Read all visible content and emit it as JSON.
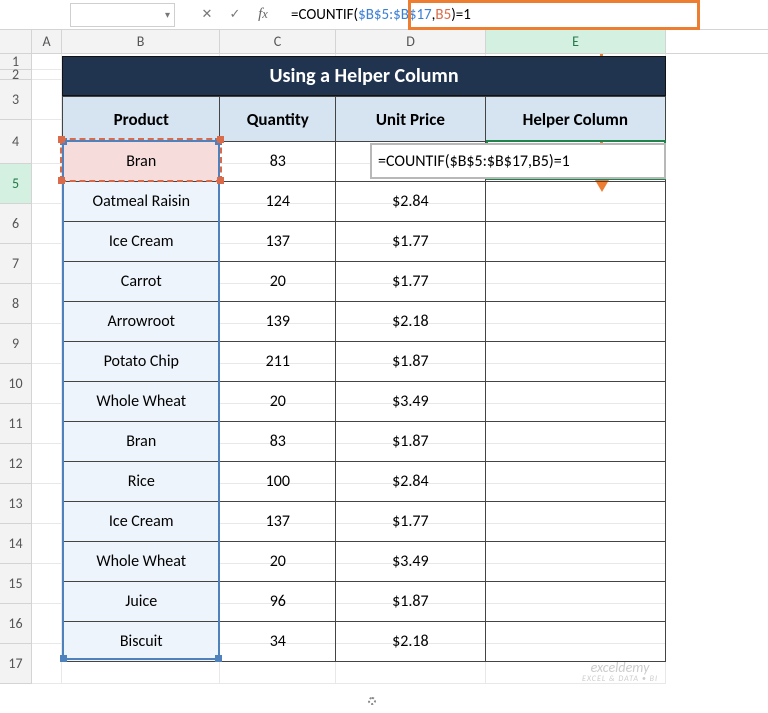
{
  "formula_bar": {
    "prefix": "=COUNTIF(",
    "ref1": "$B$5:$B$17",
    "comma": ",",
    "ref2": "B5",
    "suffix": ")=1",
    "inline_full": "=COUNTIF($B$5:$B$17,B5)=1"
  },
  "title": "Using a Helper Column",
  "columns": {
    "A": "A",
    "B": "B",
    "C": "C",
    "D": "D",
    "E": "E"
  },
  "row_nums": [
    "1",
    "2",
    "3",
    "4",
    "5",
    "6",
    "7",
    "8",
    "9",
    "10",
    "11",
    "12",
    "13",
    "14",
    "15",
    "16",
    "17"
  ],
  "headers": {
    "b": "Product",
    "c": "Quantity",
    "d": "Unit Price",
    "e": "Helper Column"
  },
  "rows": [
    {
      "b": "Bran",
      "c": "83",
      "d": ""
    },
    {
      "b": "Oatmeal Raisin",
      "c": "124",
      "d": "$2.84"
    },
    {
      "b": "Ice Cream",
      "c": "137",
      "d": "$1.77"
    },
    {
      "b": "Carrot",
      "c": "20",
      "d": "$1.77"
    },
    {
      "b": "Arrowroot",
      "c": "139",
      "d": "$2.18"
    },
    {
      "b": "Potato Chip",
      "c": "211",
      "d": "$1.87"
    },
    {
      "b": "Whole Wheat",
      "c": "20",
      "d": "$3.49"
    },
    {
      "b": "Bran",
      "c": "83",
      "d": "$1.87"
    },
    {
      "b": "Rice",
      "c": "100",
      "d": "$2.84"
    },
    {
      "b": "Ice Cream",
      "c": "137",
      "d": "$1.77"
    },
    {
      "b": "Whole Wheat",
      "c": "20",
      "d": "$3.49"
    },
    {
      "b": "Juice",
      "c": "96",
      "d": "$1.87"
    },
    {
      "b": "Biscuit",
      "c": "34",
      "d": "$2.18"
    }
  ],
  "watermark": {
    "name": "exceldemy",
    "tag": "EXCEL & DATA • BI"
  },
  "colors": {
    "callout": "#ed7d31",
    "title_bg": "#203450",
    "header_bg": "#d6e4f2",
    "col_b_bg": "#eef4fb",
    "range_border": "#4f81bd",
    "active_border": "#1e8449",
    "ref2_border": "#d96b4a",
    "row5_highlight": "#f7dcdc"
  }
}
